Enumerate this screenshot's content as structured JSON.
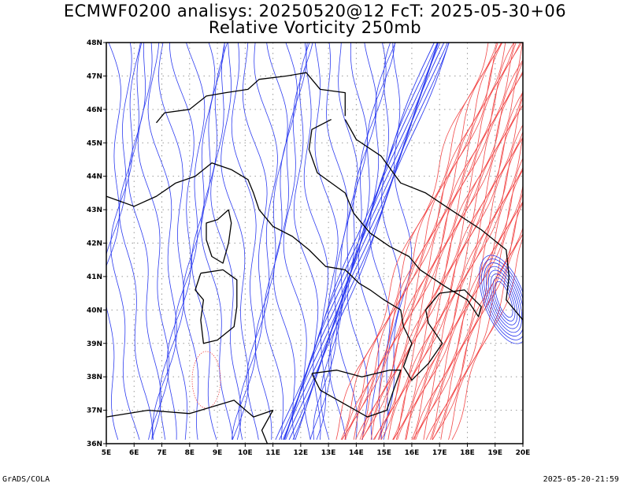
{
  "header": {
    "title_line1": "ECMWF0200 analisys: 20250520@12 FcT: 2025-05-30+06",
    "title_line2": "Relative Vorticity 250mb"
  },
  "map": {
    "projection": "lat-lon",
    "lon_range": [
      5,
      20
    ],
    "lat_range": [
      36,
      48
    ],
    "lon_labels": [
      "5E",
      "6E",
      "7E",
      "8E",
      "9E",
      "10E",
      "11E",
      "12E",
      "13E",
      "14E",
      "15E",
      "16E",
      "17E",
      "18E",
      "19E",
      "20E"
    ],
    "lat_labels": [
      "36N",
      "37N",
      "38N",
      "39N",
      "40N",
      "41N",
      "42N",
      "43N",
      "44N",
      "45N",
      "46N",
      "47N",
      "48N"
    ],
    "grid": "dotted",
    "field": "Relative Vorticity 250mb",
    "colors": {
      "negative_contours": "#2d3cf0",
      "positive_contours": "#f24a4a",
      "coastline": "#000000",
      "grid": "#999999"
    }
  },
  "footer": {
    "left": "GrADS/COLA",
    "right": "2025-05-20-21:59"
  }
}
